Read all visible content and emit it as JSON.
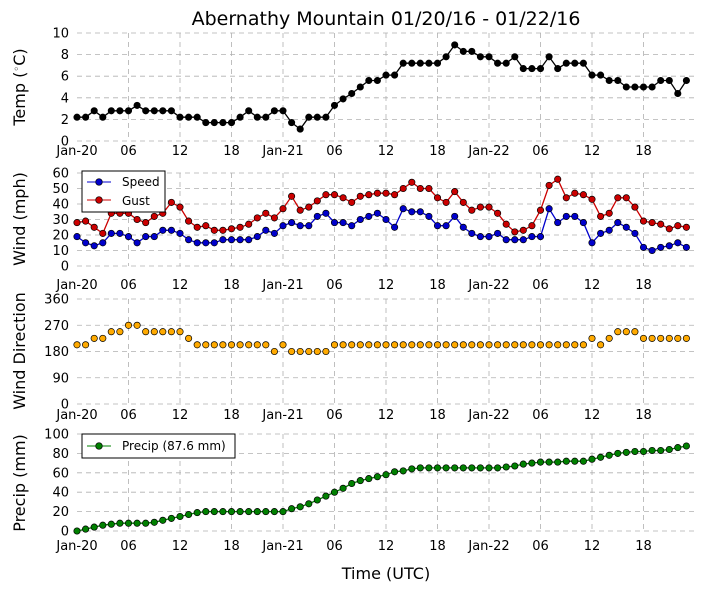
{
  "figure": {
    "title": "Abernathy Mountain 01/20/16 - 01/22/16",
    "xlabel": "Time (UTC)"
  },
  "x_ticks": [
    "Jan-20",
    "06",
    "12",
    "18",
    "Jan-21",
    "06",
    "12",
    "18",
    "Jan-22",
    "06",
    "12",
    "18"
  ],
  "colors": {
    "temp": "#000000",
    "speed": "#0000cc",
    "gust": "#cc0000",
    "direction": "#ffaa00",
    "precip": "#008000"
  },
  "chart_data": [
    {
      "type": "line",
      "ylabel": "Temp (◦C)",
      "ylabel_main": "Temp (",
      "ylabel_deg": "◦",
      "ylabel_unit": "C)",
      "ylim": [
        0,
        10
      ],
      "yticks": [
        "0",
        "2",
        "4",
        "6",
        "8",
        "10"
      ],
      "grid": true,
      "x_hours": "hourly from Jan-20 00:00 UTC",
      "series": [
        {
          "values": [
            2.2,
            2.2,
            2.8,
            2.2,
            2.8,
            2.8,
            2.8,
            3.3,
            2.8,
            2.8,
            2.8,
            2.8,
            2.2,
            2.2,
            2.2,
            1.7,
            1.7,
            1.7,
            1.7,
            2.2,
            2.8,
            2.2,
            2.2,
            2.8,
            2.8,
            1.7,
            1.1,
            2.2,
            2.2,
            2.2,
            3.3,
            3.9,
            4.4,
            5.0,
            5.6,
            5.6,
            6.1,
            6.1,
            7.2,
            7.2,
            7.2,
            7.2,
            7.2,
            7.8,
            8.9,
            8.3,
            8.3,
            7.8,
            7.8,
            7.2,
            7.2,
            7.8,
            6.7,
            6.7,
            6.7,
            7.8,
            6.7,
            7.2,
            7.2,
            7.2,
            6.1,
            6.1,
            5.6,
            5.6,
            5.0,
            5.0,
            5.0,
            5.0,
            5.6,
            5.6,
            4.4,
            5.6
          ]
        }
      ]
    },
    {
      "type": "line",
      "ylabel": "Wind (mph)",
      "ylim": [
        0,
        60
      ],
      "yticks": [
        "0",
        "10",
        "20",
        "30",
        "40",
        "50",
        "60"
      ],
      "grid": true,
      "legend": "top-left",
      "series": [
        {
          "name": "Speed",
          "values": [
            19,
            15,
            13,
            15,
            21,
            21,
            19,
            15,
            19,
            19,
            23,
            23,
            21,
            17,
            15,
            15,
            15,
            17,
            17,
            17,
            17,
            19,
            23,
            21,
            26,
            28,
            26,
            26,
            32,
            34,
            28,
            28,
            26,
            30,
            32,
            34,
            30,
            25,
            37,
            35,
            35,
            32,
            26,
            26,
            32,
            25,
            21,
            19,
            19,
            21,
            17,
            17,
            17,
            19,
            19,
            37,
            28,
            32,
            32,
            28,
            15,
            21,
            23,
            28,
            25,
            21,
            12,
            10,
            12,
            13,
            15,
            12
          ]
        },
        {
          "name": "Gust",
          "values": [
            28,
            29,
            25,
            21,
            34,
            34,
            34,
            30,
            28,
            32,
            34,
            41,
            38,
            29,
            25,
            26,
            23,
            23,
            24,
            25,
            27,
            31,
            34,
            31,
            37,
            45,
            36,
            38,
            42,
            46,
            46,
            44,
            41,
            45,
            46,
            47,
            47,
            46,
            50,
            54,
            50,
            50,
            44,
            41,
            48,
            41,
            36,
            38,
            38,
            34,
            27,
            22,
            23,
            26,
            36,
            52,
            56,
            44,
            47,
            46,
            43,
            32,
            34,
            44,
            44,
            38,
            29,
            28,
            27,
            24,
            26,
            25
          ]
        }
      ]
    },
    {
      "type": "scatter",
      "ylabel": "Wind Direction",
      "ylim": [
        0,
        360
      ],
      "yticks": [
        "0",
        "90",
        "180",
        "270",
        "360"
      ],
      "grid": true,
      "series": [
        {
          "values": [
            203,
            203,
            225,
            225,
            248,
            248,
            270,
            270,
            248,
            248,
            248,
            248,
            248,
            225,
            203,
            203,
            203,
            203,
            203,
            203,
            203,
            203,
            203,
            180,
            203,
            180,
            180,
            180,
            180,
            180,
            203,
            203,
            203,
            203,
            203,
            203,
            203,
            203,
            203,
            203,
            203,
            203,
            203,
            203,
            203,
            203,
            203,
            203,
            203,
            203,
            203,
            203,
            203,
            203,
            203,
            203,
            203,
            203,
            203,
            203,
            225,
            203,
            225,
            248,
            248,
            248,
            225,
            225,
            225,
            225,
            225,
            225
          ]
        }
      ]
    },
    {
      "type": "line",
      "ylabel": "Precip (mm)",
      "ylim": [
        0,
        100
      ],
      "yticks": [
        "0",
        "20",
        "40",
        "60",
        "80",
        "100"
      ],
      "grid": true,
      "legend": "top-left",
      "series": [
        {
          "name": "Precip (87.6 mm)",
          "values": [
            0,
            2,
            4,
            6,
            7,
            8,
            8,
            8,
            8,
            9,
            11,
            13,
            15,
            17,
            19,
            20,
            20,
            20,
            20,
            20,
            20,
            20,
            20,
            20,
            20,
            23,
            25,
            28,
            32,
            36,
            40,
            44,
            49,
            52,
            54,
            56,
            58,
            61,
            62,
            64,
            65,
            65,
            65,
            65,
            65,
            65,
            65,
            65,
            65,
            65,
            66,
            67,
            69,
            70,
            71,
            71,
            71,
            72,
            72,
            72,
            74,
            76,
            78,
            80,
            81,
            82,
            82,
            83,
            83,
            84,
            86,
            87.6
          ]
        }
      ]
    }
  ]
}
